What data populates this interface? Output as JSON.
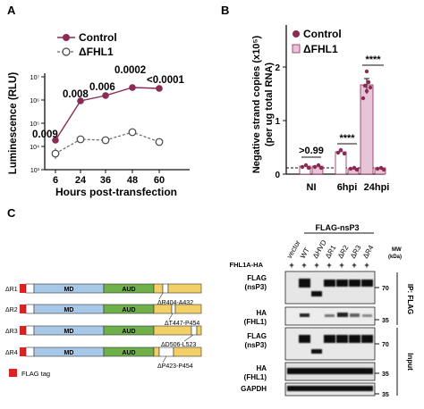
{
  "panel_labels": {
    "a": "A",
    "b": "B",
    "c": "C"
  },
  "panel_a": {
    "legend": [
      "Control",
      "ΔFHL1"
    ],
    "ylabel": "Luminescence (RLU)",
    "xlabel": "Hours post-transfection",
    "y_ticks": [
      "10⁷",
      "10⁶",
      "10⁵",
      "10⁴",
      "10³"
    ],
    "x_ticks": [
      "6",
      "24",
      "36",
      "48",
      "60"
    ],
    "pvalues": [
      "0.009",
      "0.008",
      "0.006",
      "0.0002",
      "<0.0001"
    ],
    "colors": {
      "control": "#8a2a55",
      "fhl1": "#666666"
    }
  },
  "panel_b": {
    "legend": [
      "Control",
      "ΔFHL1"
    ],
    "ylabel": "Negative strand copies (x10⁵)",
    "ylabel2": "(per ug total RNA)",
    "y_ticks": [
      "2",
      "1",
      "0"
    ],
    "x_ticks": [
      "NI",
      "6hpi",
      "24hpi"
    ],
    "sig": [
      ">0.99",
      "****",
      "****"
    ],
    "colors": {
      "control": "#8a2a55",
      "fhl1_fill": "#e8c4d8",
      "fhl1_edge": "#8a2a55"
    }
  },
  "panel_c": {
    "constructs": [
      {
        "name": "ΔR1",
        "deletion": "ΔR404-A432"
      },
      {
        "name": "ΔR2",
        "deletion": "ΔT447-P454"
      },
      {
        "name": "ΔR3",
        "deletion": "ΔD506-L523"
      },
      {
        "name": "ΔR4",
        "deletion": "ΔP423-P454"
      }
    ],
    "domains": {
      "md": "MD",
      "aud": "AUD"
    },
    "flag_tag": "FLAG tag",
    "colors": {
      "flag": "#dd2222",
      "md": "#a8c8e8",
      "aud": "#6fb04a",
      "hvd": "#f2d067"
    }
  },
  "blot": {
    "header": "FLAG-nsP3",
    "row_label": "FHL1A-HA",
    "lanes": [
      "vector",
      "WT",
      "ΔHVD",
      "ΔR1",
      "ΔR2",
      "ΔR3",
      "ΔR4"
    ],
    "signs": [
      "+",
      "+",
      "+",
      "+",
      "+",
      "+",
      "+"
    ],
    "mw_label": "MW",
    "mw_unit": "(kDa)",
    "rows": [
      {
        "label": "FLAG",
        "sub": "(nsP3)",
        "mw": "70"
      },
      {
        "label": "HA",
        "sub": "(FHL1)",
        "mw": "35"
      },
      {
        "label": "FLAG",
        "sub": "(nsP3)",
        "mw": "70"
      },
      {
        "label": "HA",
        "sub": "(FHL1)",
        "mw": "35"
      },
      {
        "label": "GAPDH",
        "sub": "",
        "mw": "35"
      }
    ],
    "side_labels": [
      "IP: FLAG",
      "Input"
    ]
  }
}
